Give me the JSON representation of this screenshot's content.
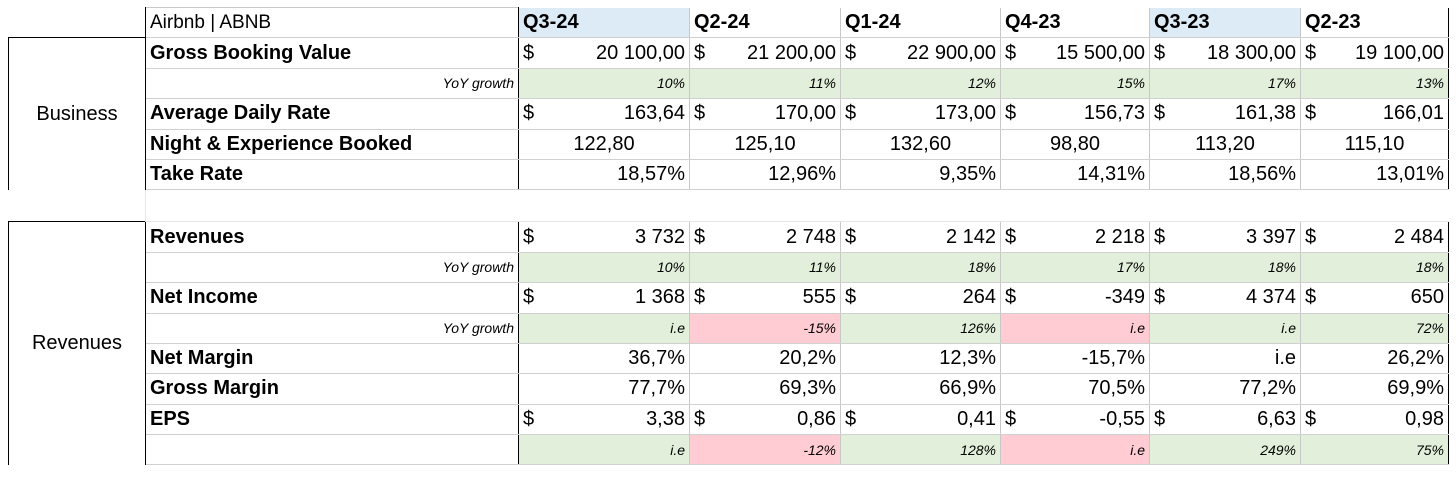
{
  "title": "Airbnb | ABNB",
  "quarters": [
    {
      "label": "Q3-24",
      "highlight": true
    },
    {
      "label": "Q2-24",
      "highlight": false
    },
    {
      "label": "Q1-24",
      "highlight": false
    },
    {
      "label": "Q4-23",
      "highlight": false
    },
    {
      "label": "Q3-23",
      "highlight": true
    },
    {
      "label": "Q2-23",
      "highlight": false
    }
  ],
  "sections": [
    {
      "name": "Business",
      "rows": [
        {
          "label": "Gross Booking Value",
          "type": "currency",
          "values": [
            "20 100,00",
            "21 200,00",
            "22 900,00",
            "15 500,00",
            "18 300,00",
            "19 100,00"
          ]
        },
        {
          "label": "YoY growth",
          "type": "growth",
          "values": [
            "10%",
            "11%",
            "12%",
            "15%",
            "17%",
            "13%"
          ],
          "colors": [
            "green",
            "green",
            "green",
            "green",
            "green",
            "green"
          ]
        },
        {
          "label": "Average Daily Rate",
          "type": "currency",
          "values": [
            "163,64",
            "170,00",
            "173,00",
            "156,73",
            "161,38",
            "166,01"
          ]
        },
        {
          "label": "Night & Experience Booked",
          "type": "center",
          "values": [
            "122,80",
            "125,10",
            "132,60",
            "98,80",
            "113,20",
            "115,10"
          ]
        },
        {
          "label": "Take Rate",
          "type": "plain",
          "values": [
            "18,57%",
            "12,96%",
            "9,35%",
            "14,31%",
            "18,56%",
            "13,01%"
          ]
        }
      ]
    },
    {
      "name": "Revenues",
      "rows": [
        {
          "label": "Revenues",
          "type": "currency",
          "values": [
            "3 732",
            "2 748",
            "2 142",
            "2 218",
            "3 397",
            "2 484"
          ]
        },
        {
          "label": "YoY growth",
          "type": "growth",
          "values": [
            "10%",
            "11%",
            "18%",
            "17%",
            "18%",
            "18%"
          ],
          "colors": [
            "green",
            "green",
            "green",
            "green",
            "green",
            "green"
          ]
        },
        {
          "label": "Net Income",
          "type": "currency",
          "values": [
            "1 368",
            "555",
            "264",
            "-349",
            "4 374",
            "650"
          ]
        },
        {
          "label": "YoY growth",
          "type": "growth",
          "values": [
            "i.e",
            "-15%",
            "126%",
            "i.e",
            "i.e",
            "72%"
          ],
          "colors": [
            "green",
            "red",
            "green",
            "red",
            "green",
            "green"
          ]
        },
        {
          "label": "Net Margin",
          "type": "plain",
          "values": [
            "36,7%",
            "20,2%",
            "12,3%",
            "-15,7%",
            "i.e",
            "26,2%"
          ]
        },
        {
          "label": "Gross Margin",
          "type": "plain",
          "values": [
            "77,7%",
            "69,3%",
            "66,9%",
            "70,5%",
            "77,2%",
            "69,9%"
          ]
        },
        {
          "label": "EPS",
          "type": "currency",
          "values": [
            "3,38",
            "0,86",
            "0,41",
            "-0,55",
            "6,63",
            "0,98"
          ]
        },
        {
          "label": "",
          "type": "growth",
          "values": [
            "i.e",
            "-12%",
            "128%",
            "i.e",
            "249%",
            "75%"
          ],
          "colors": [
            "green",
            "red",
            "green",
            "red",
            "green",
            "green"
          ]
        }
      ]
    }
  ],
  "currency_symbol": "$",
  "colors": {
    "header_blue": "#ddebf7",
    "positive_green": "#e2efda",
    "negative_red": "#ffccd3"
  }
}
